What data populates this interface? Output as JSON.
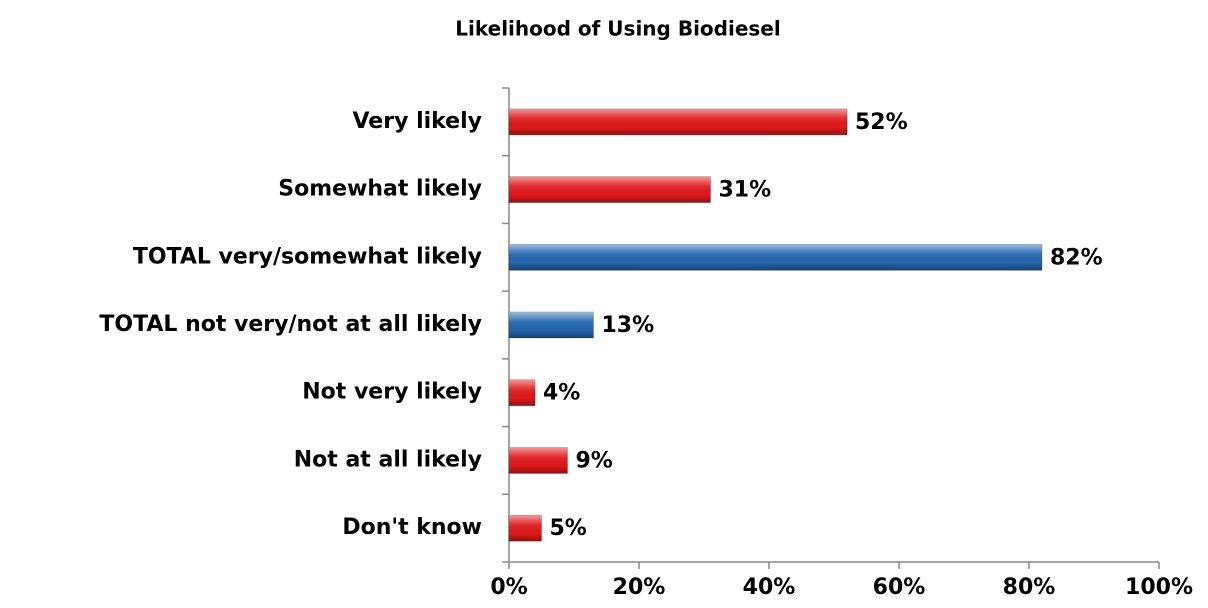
{
  "chart_data": {
    "type": "hbar",
    "title": "Likelihood of Using Biodiesel",
    "categories": [
      "Very likely",
      "Somewhat likely",
      "TOTAL very/somewhat likely",
      "TOTAL not very/not at all likely",
      "Not very likely",
      "Not at all likely",
      "Don't know"
    ],
    "values": [
      52,
      31,
      82,
      13,
      4,
      9,
      5
    ],
    "value_labels": [
      "52%",
      "31%",
      "82%",
      "13%",
      "4%",
      "9%",
      "5%"
    ],
    "colors": [
      "#e0191c",
      "#e0191c",
      "#2466b0",
      "#2466b0",
      "#e0191c",
      "#e0191c",
      "#e0191c"
    ],
    "xlim": [
      0,
      100
    ],
    "xticks": [
      {
        "value": 0,
        "label": "0%"
      },
      {
        "value": 20,
        "label": "20%"
      },
      {
        "value": 40,
        "label": "40%"
      },
      {
        "value": 60,
        "label": "60%"
      },
      {
        "value": 80,
        "label": "80%"
      },
      {
        "value": 100,
        "label": "100%"
      }
    ],
    "grid": false
  }
}
